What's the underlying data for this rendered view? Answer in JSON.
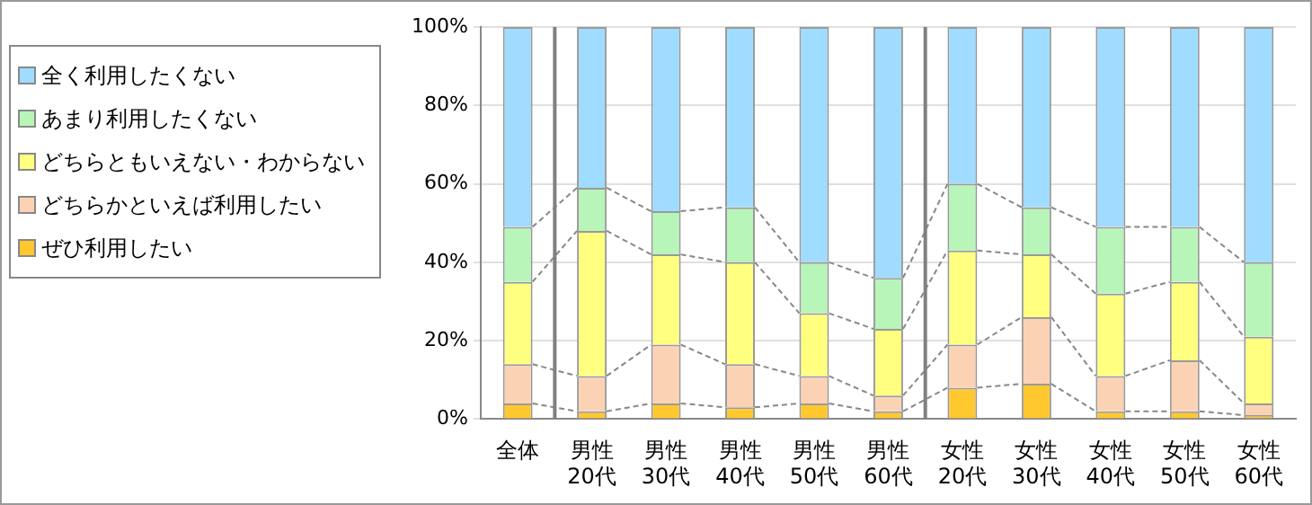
{
  "chart_data": {
    "type": "bar",
    "stacked": true,
    "categories": [
      "全体",
      "男性\n20代",
      "男性\n30代",
      "男性\n40代",
      "男性\n50代",
      "男性\n60代",
      "女性\n20代",
      "女性\n30代",
      "女性\n40代",
      "女性\n50代",
      "女性\n60代"
    ],
    "series": [
      {
        "name": "ぜひ利用したい",
        "color": "#ffc82e",
        "values": [
          4,
          2,
          4,
          3,
          4,
          2,
          8,
          9,
          2,
          2,
          1
        ]
      },
      {
        "name": "どちらかといえば利用したい",
        "color": "#fbd3b4",
        "values": [
          10,
          9,
          15,
          11,
          7,
          4,
          11,
          17,
          9,
          13,
          3
        ]
      },
      {
        "name": "どちらともいえない・わからない",
        "color": "#ffff80",
        "values": [
          21,
          37,
          23,
          26,
          16,
          17,
          24,
          16,
          21,
          20,
          17
        ]
      },
      {
        "name": "あまり利用したくない",
        "color": "#b8f5b8",
        "values": [
          14,
          11,
          11,
          14,
          13,
          13,
          17,
          12,
          17,
          14,
          19
        ]
      },
      {
        "name": "全く利用したくない",
        "color": "#9fdcff",
        "values": [
          51,
          41,
          47,
          46,
          60,
          64,
          40,
          46,
          51,
          51,
          60
        ]
      }
    ],
    "ylim": [
      0,
      100
    ],
    "yticks": [
      {
        "value": 0,
        "label": "0%"
      },
      {
        "value": 20,
        "label": "20%"
      },
      {
        "value": 40,
        "label": "40%"
      },
      {
        "value": 60,
        "label": "60%"
      },
      {
        "value": 80,
        "label": "80%"
      },
      {
        "value": 100,
        "label": "100%"
      }
    ],
    "grid": "y",
    "legend": "top left"
  }
}
